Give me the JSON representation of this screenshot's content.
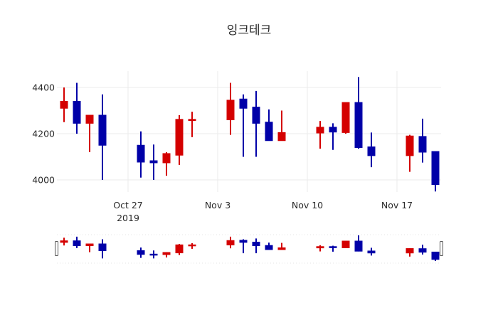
{
  "chart_data": {
    "type": "candlestick",
    "title": "잉크테크",
    "xlabel": "",
    "ylabel": "",
    "increasing_color": "#d40000",
    "decreasing_color": "#0000a8",
    "ylim": [
      3950,
      4460
    ],
    "yticks": [
      4000,
      4200,
      4400
    ],
    "xticks": [
      {
        "date": "2019-10-27",
        "label": "Oct 27",
        "sublabel": "2019"
      },
      {
        "date": "2019-11-03",
        "label": "Nov 3",
        "sublabel": ""
      },
      {
        "date": "2019-11-10",
        "label": "Nov 10",
        "sublabel": ""
      },
      {
        "date": "2019-11-17",
        "label": "Nov 17",
        "sublabel": ""
      }
    ],
    "grid": true,
    "rangeslider": true,
    "candles": [
      {
        "date": "2019-10-22",
        "open": 4310,
        "high": 4400,
        "low": 4250,
        "close": 4340
      },
      {
        "date": "2019-10-23",
        "open": 4340,
        "high": 4420,
        "low": 4200,
        "close": 4245
      },
      {
        "date": "2019-10-24",
        "open": 4245,
        "high": 4280,
        "low": 4120,
        "close": 4280
      },
      {
        "date": "2019-10-25",
        "open": 4280,
        "high": 4370,
        "low": 4000,
        "close": 4150
      },
      {
        "date": "2019-10-28",
        "open": 4150,
        "high": 4210,
        "low": 4010,
        "close": 4077
      },
      {
        "date": "2019-10-29",
        "open": 4083,
        "high": 4153,
        "low": 4000,
        "close": 4074
      },
      {
        "date": "2019-10-30",
        "open": 4074,
        "high": 4120,
        "low": 4018,
        "close": 4114
      },
      {
        "date": "2019-10-31",
        "open": 4107,
        "high": 4280,
        "low": 4065,
        "close": 4262
      },
      {
        "date": "2019-11-01",
        "open": 4257,
        "high": 4295,
        "low": 4185,
        "close": 4262
      },
      {
        "date": "2019-11-04",
        "open": 4260,
        "high": 4420,
        "low": 4195,
        "close": 4345
      },
      {
        "date": "2019-11-05",
        "open": 4350,
        "high": 4370,
        "low": 4100,
        "close": 4310
      },
      {
        "date": "2019-11-06",
        "open": 4315,
        "high": 4385,
        "low": 4100,
        "close": 4245
      },
      {
        "date": "2019-11-07",
        "open": 4250,
        "high": 4305,
        "low": 4170,
        "close": 4170
      },
      {
        "date": "2019-11-08",
        "open": 4170,
        "high": 4300,
        "low": 4170,
        "close": 4205
      },
      {
        "date": "2019-11-11",
        "open": 4203,
        "high": 4255,
        "low": 4135,
        "close": 4228
      },
      {
        "date": "2019-11-12",
        "open": 4228,
        "high": 4245,
        "low": 4130,
        "close": 4207
      },
      {
        "date": "2019-11-13",
        "open": 4205,
        "high": 4335,
        "low": 4200,
        "close": 4335
      },
      {
        "date": "2019-11-14",
        "open": 4335,
        "high": 4445,
        "low": 4135,
        "close": 4140
      },
      {
        "date": "2019-11-15",
        "open": 4143,
        "high": 4205,
        "low": 4055,
        "close": 4105
      },
      {
        "date": "2019-11-18",
        "open": 4105,
        "high": 4195,
        "low": 4035,
        "close": 4190
      },
      {
        "date": "2019-11-19",
        "open": 4188,
        "high": 4265,
        "low": 4075,
        "close": 4120
      },
      {
        "date": "2019-11-20",
        "open": 4123,
        "high": 4123,
        "low": 3950,
        "close": 3980
      }
    ]
  }
}
